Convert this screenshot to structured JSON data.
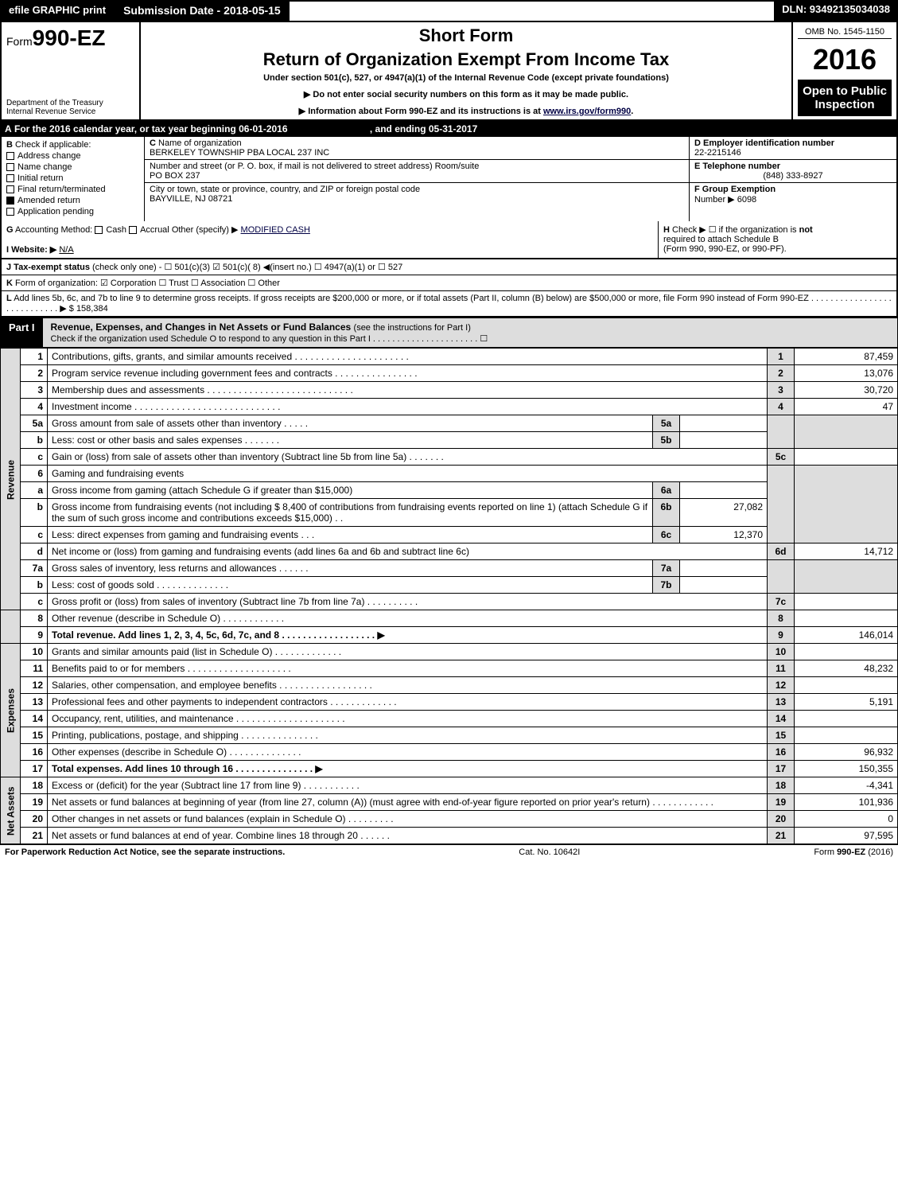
{
  "topbar": {
    "efile_btn": "efile GRAPHIC print",
    "submission": "Submission Date - 2018-05-15",
    "dln": "DLN: 93492135034038"
  },
  "header": {
    "form_prefix": "Form",
    "form_no": "990-EZ",
    "short_form": "Short Form",
    "main_title": "Return of Organization Exempt From Income Tax",
    "subtitle": "Under section 501(c), 527, or 4947(a)(1) of the Internal Revenue Code (except private foundations)",
    "arrow1": "▶ Do not enter social security numbers on this form as it may be made public.",
    "arrow2_prefix": "▶ Information about Form 990-EZ and its instructions is at ",
    "arrow2_link": "www.irs.gov/form990",
    "dept1": "Department of the Treasury",
    "dept2": "Internal Revenue Service",
    "omb": "OMB No. 1545-1150",
    "year": "2016",
    "open1": "Open to Public",
    "open2": "Inspection"
  },
  "row_a": {
    "label": "A",
    "text": "For the 2016 calendar year, or tax year beginning 06-01-2016",
    "ending": ", and ending 05-31-2017"
  },
  "section_b": {
    "label": "B",
    "check_if": "Check if applicable:",
    "items": [
      "Address change",
      "Name change",
      "Initial return",
      "Final return/terminated",
      "Amended return",
      "Application pending"
    ],
    "checked_idx": 4
  },
  "section_c": {
    "c_lbl": "C",
    "name_lbl": "Name of organization",
    "name": "BERKELEY TOWNSHIP PBA LOCAL 237 INC",
    "addr_lbl": "Number and street (or P. O. box, if mail is not delivered to street address)    Room/suite",
    "addr": "PO BOX 237",
    "city_lbl": "City or town, state or province, country, and ZIP or foreign postal code",
    "city": "BAYVILLE, NJ  08721"
  },
  "section_d": {
    "d_lbl": "D Employer identification number",
    "ein": "22-2215146",
    "e_lbl": "E Telephone number",
    "phone": "(848) 333-8927",
    "f_lbl": "F Group Exemption",
    "f_num_lbl": "Number  ▶",
    "f_num": "6098"
  },
  "row_g": {
    "g_lbl": "G",
    "g_text": "Accounting Method:",
    "cash": "Cash",
    "accrual": "Accrual",
    "other": "Other (specify) ▶",
    "other_val": "MODIFIED CASH",
    "h_lbl": "H",
    "h_text1": "Check ▶  ☐  if the organization is",
    "h_not": "not",
    "h_text2": "required to attach Schedule B",
    "h_text3": "(Form 990, 990-EZ, or 990-PF)."
  },
  "row_i": {
    "lbl": "I Website: ▶",
    "val": "N/A"
  },
  "row_j": {
    "lbl": "J Tax-exempt status",
    "rest": "(check only one) -  ☐ 501(c)(3)  ☑ 501(c)( 8) ◀(insert no.)  ☐ 4947(a)(1) or  ☐ 527"
  },
  "row_k": {
    "lbl": "K",
    "text": "Form of organization:  ☑ Corporation  ☐ Trust  ☐ Association  ☐ Other"
  },
  "row_l": {
    "lbl": "L",
    "text": "Add lines 5b, 6c, and 7b to line 9 to determine gross receipts. If gross receipts are $200,000 or more, or if total assets (Part II, column (B) below) are $500,000 or more, file Form 990 instead of Form 990-EZ  . . . . . . . . . . . . . . . . . . . . . . . . . . . .  ▶ $",
    "amount": "158,384"
  },
  "part1": {
    "tag": "Part I",
    "title": "Revenue, Expenses, and Changes in Net Assets or Fund Balances",
    "title_sub": "(see the instructions for Part I)",
    "check_line": "Check if the organization used Schedule O to respond to any question in this Part I . . . . . . . . . . . . . . . . . . . . . .  ☐"
  },
  "vert": {
    "rev": "Revenue",
    "exp": "Expenses",
    "na": "Net Assets"
  },
  "lines": {
    "l1": {
      "n": "1",
      "d": "Contributions, gifts, grants, and similar amounts received  . . . . . . . . . . . . . . . . . . . . . .",
      "rn": "1",
      "rv": "87,459"
    },
    "l2": {
      "n": "2",
      "d": "Program service revenue including government fees and contracts  . . . . . . . . . . . . . . . .",
      "rn": "2",
      "rv": "13,076"
    },
    "l3": {
      "n": "3",
      "d": "Membership dues and assessments  . . . . . . . . . . . . . . . . . . . . . . . . . . . .",
      "rn": "3",
      "rv": "30,720"
    },
    "l4": {
      "n": "4",
      "d": "Investment income  . . . . . . . . . . . . . . . . . . . . . . . . . . . .",
      "rn": "4",
      "rv": "47"
    },
    "l5a": {
      "n": "5a",
      "d": "Gross amount from sale of assets other than inventory  . . . . .",
      "mn": "5a",
      "mv": ""
    },
    "l5b": {
      "n": "b",
      "d": "Less: cost or other basis and sales expenses  . . . . . . .",
      "mn": "5b",
      "mv": ""
    },
    "l5c": {
      "n": "c",
      "d": "Gain or (loss) from sale of assets other than inventory (Subtract line 5b from line 5a) . . . . . . .",
      "rn": "5c",
      "rv": ""
    },
    "l6": {
      "n": "6",
      "d": "Gaming and fundraising events"
    },
    "l6a": {
      "n": "a",
      "d": "Gross income from gaming (attach Schedule G if greater than $15,000)",
      "mn": "6a",
      "mv": ""
    },
    "l6b": {
      "n": "b",
      "d": "Gross income from fundraising events (not including $  8,400           of contributions from fundraising events reported on line 1) (attach Schedule G if the sum of such gross income and contributions exceeds $15,000)   . .",
      "mn": "6b",
      "mv": "27,082"
    },
    "l6c": {
      "n": "c",
      "d": "Less: direct expenses from gaming and fundraising events          . . .",
      "mn": "6c",
      "mv": "12,370"
    },
    "l6d": {
      "n": "d",
      "d": "Net income or (loss) from gaming and fundraising events (add lines 6a and 6b and subtract line 6c)",
      "rn": "6d",
      "rv": "14,712"
    },
    "l7a": {
      "n": "7a",
      "d": "Gross sales of inventory, less returns and allowances  . . . . . .",
      "mn": "7a",
      "mv": ""
    },
    "l7b": {
      "n": "b",
      "d": "Less: cost of goods sold          . . . . . . . . . . . . . .",
      "mn": "7b",
      "mv": ""
    },
    "l7c": {
      "n": "c",
      "d": "Gross profit or (loss) from sales of inventory (Subtract line 7b from line 7a) . . . . . . . . . .",
      "rn": "7c",
      "rv": ""
    },
    "l8": {
      "n": "8",
      "d": "Other revenue (describe in Schedule O)                          . . . . . . . . . . . .",
      "rn": "8",
      "rv": ""
    },
    "l9": {
      "n": "9",
      "d": "Total revenue. Add lines 1, 2, 3, 4, 5c, 6d, 7c, and 8  . . . . . . . . . . . . . . . . . .      ▶",
      "rn": "9",
      "rv": "146,014"
    },
    "l10": {
      "n": "10",
      "d": "Grants and similar amounts paid (list in Schedule O)          . . . . . . . . . . . . .",
      "rn": "10",
      "rv": ""
    },
    "l11": {
      "n": "11",
      "d": "Benefits paid to or for members          . . . . . . . . . . . . . . . . . . . .",
      "rn": "11",
      "rv": "48,232"
    },
    "l12": {
      "n": "12",
      "d": "Salaries, other compensation, and employee benefits . . . . . . . . . . . . . . . . . .",
      "rn": "12",
      "rv": ""
    },
    "l13": {
      "n": "13",
      "d": "Professional fees and other payments to independent contractors  . . . . . . . . . . . . .",
      "rn": "13",
      "rv": "5,191"
    },
    "l14": {
      "n": "14",
      "d": "Occupancy, rent, utilities, and maintenance . . . . . . . . . . . . . . . . . . . . .",
      "rn": "14",
      "rv": ""
    },
    "l15": {
      "n": "15",
      "d": "Printing, publications, postage, and shipping          . . . . . . . . . . . . . . .",
      "rn": "15",
      "rv": ""
    },
    "l16": {
      "n": "16",
      "d": "Other expenses (describe in Schedule O)                  . . . . . . . . . . . . . .",
      "rn": "16",
      "rv": "96,932"
    },
    "l17": {
      "n": "17",
      "d": "Total expenses. Add lines 10 through 16          . . . . . . . . . . . . . . .      ▶",
      "rn": "17",
      "rv": "150,355"
    },
    "l18": {
      "n": "18",
      "d": "Excess or (deficit) for the year (Subtract line 17 from line 9)          . . . . . . . . . . .",
      "rn": "18",
      "rv": "-4,341"
    },
    "l19": {
      "n": "19",
      "d": "Net assets or fund balances at beginning of year (from line 27, column (A)) (must agree with end-of-year figure reported on prior year's return)                  . . . . . . . . . . . .",
      "rn": "19",
      "rv": "101,936"
    },
    "l20": {
      "n": "20",
      "d": "Other changes in net assets or fund balances (explain in Schedule O)      . . . . . . . . .",
      "rn": "20",
      "rv": "0"
    },
    "l21": {
      "n": "21",
      "d": "Net assets or fund balances at end of year. Combine lines 18 through 20          . . . . . .",
      "rn": "21",
      "rv": "97,595"
    }
  },
  "footer": {
    "left": "For Paperwork Reduction Act Notice, see the separate instructions.",
    "mid": "Cat. No. 10642I",
    "right_pre": "Form ",
    "right_form": "990-EZ",
    "right_yr": " (2016)"
  },
  "colors": {
    "black": "#000000",
    "shade": "#dddddd",
    "link": "#000044"
  }
}
